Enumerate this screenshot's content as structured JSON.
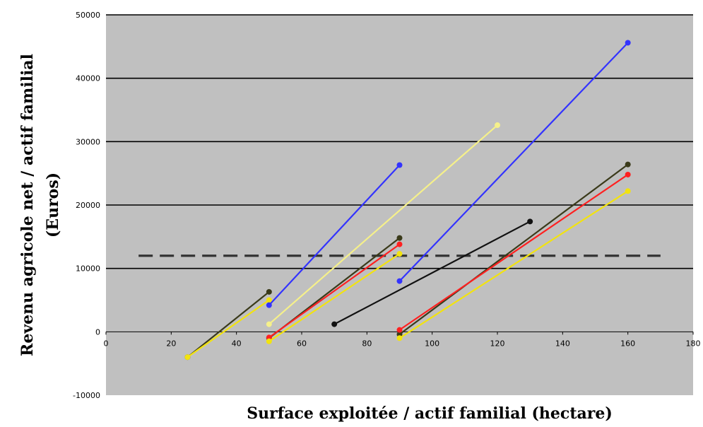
{
  "chart_data": {
    "type": "line",
    "title": "",
    "xlabel": "Surface exploitée / actif familial (hectare)",
    "ylabel": "Revenu agricole net / actif familial (Euros)",
    "ylabel_lines": [
      "Revenu agricole net / actif familial",
      "(Euros)"
    ],
    "xlim": [
      0,
      180
    ],
    "ylim": [
      -10000,
      50000
    ],
    "xticks": [
      0,
      20,
      40,
      60,
      80,
      100,
      120,
      140,
      160,
      180
    ],
    "yticks": [
      -10000,
      0,
      10000,
      20000,
      30000,
      40000,
      50000
    ],
    "xtick_labels": [
      "0",
      "20",
      "40",
      "60",
      "80",
      "100",
      "120",
      "140",
      "160",
      "180"
    ],
    "ytick_labels": [
      "-10000",
      "0",
      "10000",
      "20000",
      "30000",
      "40000",
      "50000"
    ],
    "grid": "horizontal",
    "background": "#c0c0c0",
    "threshold": {
      "value": 12000,
      "x": [
        10,
        170
      ],
      "style": "dashed",
      "color": "#333333"
    },
    "series": [
      {
        "color": "#3a3a1a",
        "x": [
          25,
          50
        ],
        "y": [
          -4000,
          6300
        ]
      },
      {
        "color": "#f2e30f",
        "x": [
          25,
          50
        ],
        "y": [
          -4000,
          5000
        ]
      },
      {
        "color": "#3333ff",
        "x": [
          50,
          90
        ],
        "y": [
          4200,
          26300
        ]
      },
      {
        "color": "#f5f08a",
        "x": [
          50,
          120
        ],
        "y": [
          1200,
          32600
        ]
      },
      {
        "color": "#3a3a1a",
        "x": [
          50,
          90
        ],
        "y": [
          -1000,
          14800
        ]
      },
      {
        "color": "#ff2020",
        "x": [
          50,
          90
        ],
        "y": [
          -900,
          13800
        ]
      },
      {
        "color": "#f2e30f",
        "x": [
          50,
          90
        ],
        "y": [
          -1500,
          12300
        ]
      },
      {
        "color": "#3333ff",
        "x": [
          90,
          160
        ],
        "y": [
          8000,
          45600
        ]
      },
      {
        "color": "#111111",
        "x": [
          70,
          130
        ],
        "y": [
          1200,
          17400
        ]
      },
      {
        "color": "#3a3a1a",
        "x": [
          90,
          160
        ],
        "y": [
          -400,
          26400
        ]
      },
      {
        "color": "#ff2020",
        "x": [
          90,
          160
        ],
        "y": [
          300,
          24800
        ]
      },
      {
        "color": "#f2e30f",
        "x": [
          90,
          160
        ],
        "y": [
          -1000,
          22200
        ]
      }
    ]
  }
}
